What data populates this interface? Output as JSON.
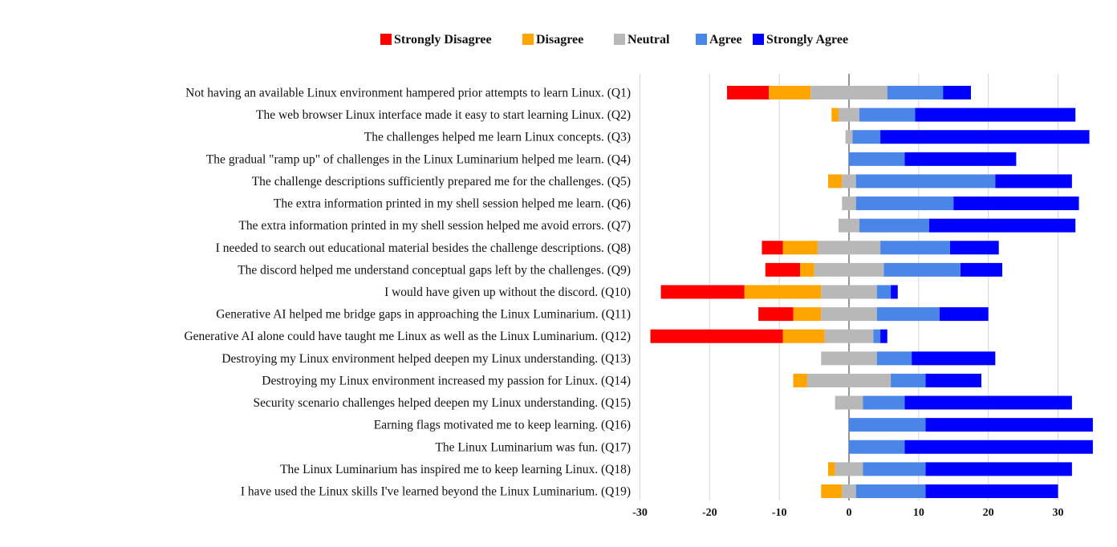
{
  "chart_data": {
    "type": "bar",
    "orientation": "horizontal",
    "stacked": "diverging",
    "title": "",
    "xlabel": "",
    "ylabel": "",
    "xlim": [
      -30,
      35
    ],
    "xticks": [
      -30,
      -20,
      -10,
      0,
      10,
      20,
      30
    ],
    "xtick_labels": [
      "-30",
      "-20",
      "-10",
      "0",
      "10",
      "20",
      "30"
    ],
    "grid": "vertical",
    "legend_position": "top-center",
    "series": [
      {
        "name": "Strongly Disagree",
        "color": "#ff0000"
      },
      {
        "name": "Disagree",
        "color": "#ffa500"
      },
      {
        "name": "Neutral",
        "color": "#b8b8b8"
      },
      {
        "name": "Agree",
        "color": "#4a86e8"
      },
      {
        "name": "Strongly Agree",
        "color": "#0000ff"
      }
    ],
    "categories": [
      "Not having an available Linux environment hampered prior attempts to learn Linux. (Q1)",
      "The web browser Linux interface made it easy to start learning Linux. (Q2)",
      "The challenges helped me learn Linux concepts. (Q3)",
      "The gradual \"ramp up\" of challenges in the Linux Luminarium helped me learn. (Q4)",
      "The challenge descriptions sufficiently prepared me for the challenges. (Q5)",
      "The extra information printed in my shell session helped me learn. (Q6)",
      "The extra information printed in my shell session helped me avoid errors. (Q7)",
      "I needed to search out educational material besides the challenge descriptions. (Q8)",
      "The discord helped me understand conceptual gaps left by the challenges. (Q9)",
      "I would have given up without the discord. (Q10)",
      "Generative AI helped me bridge gaps in approaching the Linux Luminarium. (Q11)",
      "Generative AI alone could have taught me Linux as well as the Linux Luminarium. (Q12)",
      "Destroying my Linux environment helped deepen my Linux understanding. (Q13)",
      "Destroying my Linux environment increased my passion for Linux. (Q14)",
      "Security scenario challenges helped deepen my Linux understanding. (Q15)",
      "Earning flags motivated me to keep learning. (Q16)",
      "The Linux Luminarium was fun. (Q17)",
      "The Linux Luminarium has inspired me to keep learning Linux. (Q18)",
      "I have used the Linux skills I've learned beyond the Linux Luminarium. (Q19)"
    ],
    "values": {
      "Strongly Disagree": [
        6,
        0,
        0,
        0,
        0,
        0,
        0,
        3,
        5,
        12,
        5,
        19,
        0,
        0,
        0,
        0,
        0,
        0,
        0
      ],
      "Disagree": [
        6,
        1,
        0,
        0,
        2,
        0,
        0,
        5,
        2,
        11,
        4,
        6,
        0,
        2,
        0,
        0,
        0,
        1,
        3
      ],
      "Neutral": [
        11,
        3,
        1,
        0,
        2,
        2,
        3,
        9,
        10,
        8,
        8,
        7,
        8,
        12,
        4,
        0,
        0,
        4,
        2
      ],
      "Agree": [
        8,
        8,
        4,
        8,
        20,
        14,
        10,
        10,
        11,
        2,
        9,
        1,
        5,
        5,
        6,
        11,
        8,
        9,
        10
      ],
      "Strongly Agree": [
        4,
        23,
        30,
        16,
        11,
        18,
        21,
        7,
        6,
        1,
        7,
        1,
        12,
        8,
        24,
        24,
        27,
        21,
        19
      ]
    }
  }
}
